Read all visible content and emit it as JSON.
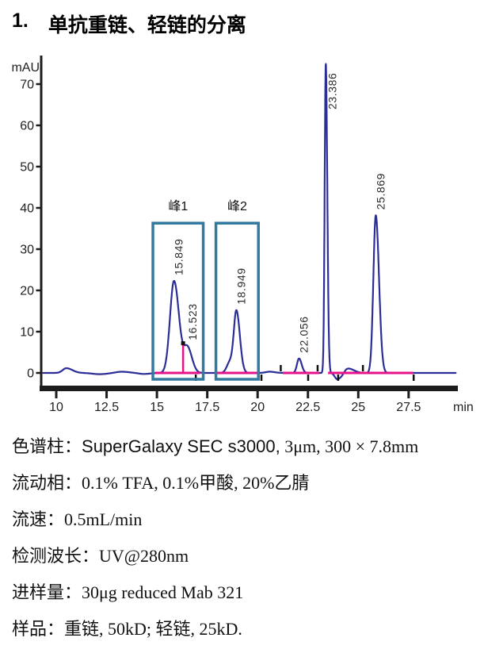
{
  "title": {
    "number": "1.",
    "text": "单抗重链、轻链的分离"
  },
  "chart_data": {
    "type": "line",
    "title": "",
    "xlabel": "min",
    "ylabel": "mAU",
    "xlim": [
      9.35,
      29.85
    ],
    "ylim": [
      -3,
      78
    ],
    "grid": false,
    "x_ticks": [
      "10",
      "12.5",
      "15",
      "17.5",
      "20",
      "22.5",
      "25",
      "27.5"
    ],
    "x_tick_values": [
      10,
      12.5,
      15,
      17.5,
      20,
      22.5,
      25,
      27.5
    ],
    "y_ticks": [
      "0",
      "10",
      "20",
      "30",
      "40",
      "50",
      "60",
      "70"
    ],
    "y_tick_values": [
      0,
      10,
      20,
      30,
      40,
      50,
      60,
      70
    ],
    "peaks": [
      {
        "rt": 10.5,
        "height": 1.15,
        "sigma_l": 0.18,
        "sigma_r": 0.3,
        "label": ""
      },
      {
        "rt": 12.15,
        "height": -0.3,
        "sigma_l": 0.35,
        "sigma_r": 0.4,
        "label": ""
      },
      {
        "rt": 13.25,
        "height": 0.3,
        "sigma_l": 0.3,
        "sigma_r": 0.35,
        "label": ""
      },
      {
        "rt": 14.35,
        "height": -0.25,
        "sigma_l": 0.25,
        "sigma_r": 0.3,
        "label": ""
      },
      {
        "rt": 15.849,
        "height": 22.3,
        "sigma_l": 0.2,
        "sigma_r": 0.25,
        "label": "15.849"
      },
      {
        "rt": 16.523,
        "height": 6.0,
        "sigma_l": 0.18,
        "sigma_r": 0.22,
        "label": "16.523"
      },
      {
        "rt": 18.62,
        "height": 2.6,
        "sigma_l": 0.15,
        "sigma_r": 0.15,
        "label": ""
      },
      {
        "rt": 18.949,
        "height": 15.0,
        "sigma_l": 0.13,
        "sigma_r": 0.17,
        "label": "18.949"
      },
      {
        "rt": 20.6,
        "height": 0.3,
        "sigma_l": 0.2,
        "sigma_r": 0.25,
        "label": ""
      },
      {
        "rt": 22.056,
        "height": 3.5,
        "sigma_l": 0.1,
        "sigma_r": 0.13,
        "label": "22.056"
      },
      {
        "rt": 23.386,
        "height": 75.0,
        "sigma_l": 0.055,
        "sigma_r": 0.075,
        "label": "23.386",
        "label_dy": 58,
        "label_dx": 13
      },
      {
        "rt": 23.95,
        "height": -1.5,
        "sigma_l": 0.12,
        "sigma_r": 0.25,
        "label": ""
      },
      {
        "rt": 24.45,
        "height": 1.2,
        "sigma_l": 0.15,
        "sigma_r": 0.3,
        "label": ""
      },
      {
        "rt": 25.869,
        "height": 38.2,
        "sigma_l": 0.12,
        "sigma_r": 0.16,
        "label": "25.869"
      }
    ],
    "regions": [
      {
        "label": "峰1",
        "t1": 14.8,
        "t2": 17.3,
        "top": 36.3,
        "bottom": -1.54
      },
      {
        "label": "峰2",
        "t1": 17.93,
        "t2": 20.04,
        "top": 36.3,
        "bottom": -1.54
      }
    ],
    "baseline_segments": [
      [
        14.9,
        17.15
      ],
      [
        17.9,
        20.1
      ],
      [
        21.25,
        23.05
      ],
      [
        23.5,
        27.74
      ]
    ],
    "valley_dropline": {
      "t": 16.3,
      "top": 6.9
    },
    "integration_marks": [
      {
        "t": 16.93,
        "dir": "down"
      },
      {
        "t": 20.19,
        "dir": "down"
      },
      {
        "t": 21.15,
        "dir": "up"
      },
      {
        "t": 22.51,
        "dir": "down"
      },
      {
        "t": 22.98,
        "dir": "up"
      },
      {
        "t": 24.0,
        "dir": "down"
      },
      {
        "t": 25.23,
        "dir": "up"
      },
      {
        "t": 27.75,
        "dir": "down"
      }
    ],
    "colors": {
      "curve": "#2b2e96",
      "baseline": "#e6128a",
      "box": "#347aa0",
      "axis": "#1c1c1c",
      "tick_text": "#1f1f1f"
    }
  },
  "conditions": [
    {
      "parts": [
        {
          "t": "色谱柱：",
          "f": "cjk"
        },
        {
          "t": "SuperGalaxy SEC s3000,",
          "f": "sans"
        },
        {
          "t": " 3μm, 300 × 7.8mm",
          "f": "serif"
        }
      ]
    },
    {
      "parts": [
        {
          "t": "流动相：0.1% TFA, 0.1%甲酸, 20%乙腈",
          "f": "serif"
        }
      ]
    },
    {
      "parts": [
        {
          "t": "流速：0.5mL/min",
          "f": "serif"
        }
      ]
    },
    {
      "parts": [
        {
          "t": "检测波长：UV@280nm",
          "f": "serif"
        }
      ]
    },
    {
      "parts": [
        {
          "t": "进样量：30μg reduced Mab 321",
          "f": "serif"
        }
      ]
    },
    {
      "parts": [
        {
          "t": "样品：重链, 50kD; 轻链, 25kD.",
          "f": "serif"
        }
      ]
    }
  ]
}
